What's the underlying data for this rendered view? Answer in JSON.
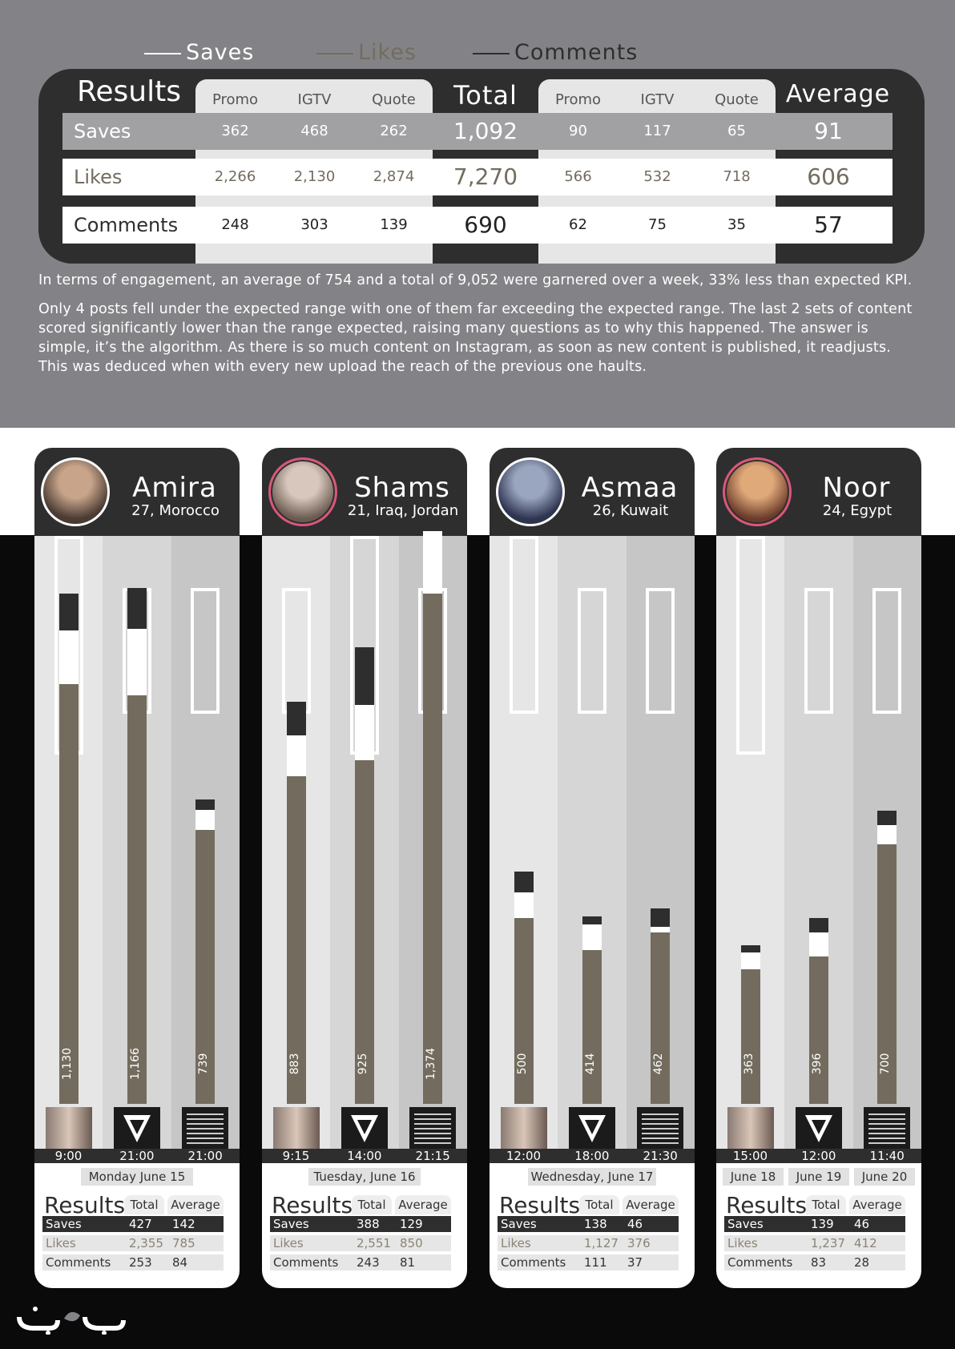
{
  "legend": [
    {
      "name": "Saves",
      "color": "#ffffff"
    },
    {
      "name": "Likes",
      "color": "#736c5e"
    },
    {
      "name": "Comments",
      "color": "#2e2e2e"
    }
  ],
  "results_table": {
    "title": "Results",
    "columns": [
      "Promo",
      "IGTV",
      "Quote"
    ],
    "total_label": "Total",
    "average_label": "Average",
    "rows": [
      {
        "label": "Saves",
        "total": [
          "362",
          "468",
          "262"
        ],
        "total_sum": "1,092",
        "avg": [
          "90",
          "117",
          "65"
        ],
        "avg_all": "91"
      },
      {
        "label": "Likes",
        "total": [
          "2,266",
          "2,130",
          "2,874"
        ],
        "total_sum": "7,270",
        "avg": [
          "566",
          "532",
          "718"
        ],
        "avg_all": "606"
      },
      {
        "label": "Comments",
        "total": [
          "248",
          "303",
          "139"
        ],
        "total_sum": "690",
        "avg": [
          "62",
          "75",
          "35"
        ],
        "avg_all": "57"
      }
    ]
  },
  "paragraph1": "In terms of engagement, an average of 754 and a total of 9,052 were garnered over a week, 33% less than expected KPI.",
  "paragraph2": "Only 4 posts fell under the expected range with one of them far exceeding the expected range. The last 2 sets of content scored significantly lower than the range expected, raising many questions as to why this happened. The answer is simple, it’s the algorithm. As there is so much content on Instagram, as soon as new content is published, it readjusts. This was deduced when with every new upload the reach of the previous one haults.",
  "chart_data": {
    "type": "bar",
    "stacked": true,
    "series_names": [
      "Likes",
      "Saves",
      "Comments"
    ],
    "value_axis_max": 1530,
    "influencers": [
      {
        "name": "Amira",
        "info": "27, Morocco",
        "dates": [
          "Monday June 15"
        ],
        "posts": [
          {
            "time": "9:00",
            "type": "Promo",
            "total": "1,130",
            "likes": 1130,
            "saves": 145,
            "comments": 100,
            "range_low": 940,
            "range_high": 1530
          },
          {
            "time": "21:00",
            "type": "IGTV",
            "total": "1,166",
            "likes": 1100,
            "saves": 180,
            "comments": 110,
            "range_low": 1050,
            "range_high": 1390
          },
          {
            "time": "21:00",
            "type": "Quote",
            "total": "739",
            "likes": 739,
            "saves": 52,
            "comments": 30,
            "range_low": 1050,
            "range_high": 1390
          }
        ],
        "results": {
          "title": "Results",
          "total_label": "Total",
          "average_label": "Average",
          "saves": [
            "427",
            "142"
          ],
          "likes": [
            "2,355",
            "785"
          ],
          "comments": [
            "253",
            "84"
          ]
        }
      },
      {
        "name": "Shams",
        "info": "21, Iraq, Jordan",
        "dates": [
          "Tuesday, June 16"
        ],
        "posts": [
          {
            "time": "9:15",
            "type": "Promo",
            "total": "883",
            "likes": 883,
            "saves": 110,
            "comments": 90,
            "range_low": 1050,
            "range_high": 1390
          },
          {
            "time": "14:00",
            "type": "IGTV",
            "total": "925",
            "likes": 925,
            "saves": 150,
            "comments": 155,
            "range_low": 940,
            "range_high": 1530
          },
          {
            "time": "21:15",
            "type": "Quote",
            "total": "1,374",
            "likes": 1374,
            "saves": 170,
            "comments": 30,
            "range_low": 1050,
            "range_high": 1390
          }
        ],
        "results": {
          "title": "Results",
          "total_label": "Total",
          "average_label": "Average",
          "saves": [
            "388",
            "129"
          ],
          "likes": [
            "2,551",
            "850"
          ],
          "comments": [
            "243",
            "81"
          ]
        }
      },
      {
        "name": "Asmaa",
        "info": "26, Kuwait",
        "dates": [
          "Wednesday, June 17"
        ],
        "posts": [
          {
            "time": "12:00",
            "type": "Promo",
            "total": "500",
            "likes": 500,
            "saves": 70,
            "comments": 55,
            "range_low": 1050,
            "range_high": 1530
          },
          {
            "time": "18:00",
            "type": "IGTV",
            "total": "414",
            "likes": 414,
            "saves": 70,
            "comments": 20,
            "range_low": 1050,
            "range_high": 1390
          },
          {
            "time": "21:30",
            "type": "Quote",
            "total": "462",
            "likes": 462,
            "saves": 15,
            "comments": 50,
            "range_low": 1050,
            "range_high": 1390
          }
        ],
        "results": {
          "title": "Results",
          "total_label": "Total",
          "average_label": "Average",
          "saves": [
            "138",
            "46"
          ],
          "likes": [
            "1,127",
            "376"
          ],
          "comments": [
            "111",
            "37"
          ]
        }
      },
      {
        "name": "Noor",
        "info": "24, Egypt",
        "dates": [
          "June 18",
          "June 19",
          "June 20"
        ],
        "posts": [
          {
            "time": "15:00",
            "type": "Promo",
            "total": "363",
            "likes": 363,
            "saves": 45,
            "comments": 20,
            "range_low": 940,
            "range_high": 1530
          },
          {
            "time": "12:00",
            "type": "IGTV",
            "total": "396",
            "likes": 396,
            "saves": 65,
            "comments": 40,
            "range_low": 1050,
            "range_high": 1390
          },
          {
            "time": "11:40",
            "type": "Quote",
            "total": "700",
            "likes": 700,
            "saves": 50,
            "comments": 40,
            "range_low": 1050,
            "range_high": 1390
          }
        ],
        "results": {
          "title": "Results",
          "total_label": "Total",
          "average_label": "Average",
          "saves": [
            "139",
            "46"
          ],
          "likes": [
            "1,237",
            "412"
          ],
          "comments": [
            "83",
            "28"
          ]
        }
      }
    ]
  },
  "colors": {
    "likes": "#736c5e",
    "saves": "#ffffff",
    "comments": "#2e2e2e",
    "panel": "#2e2e2e",
    "top_bg": "#838387"
  }
}
